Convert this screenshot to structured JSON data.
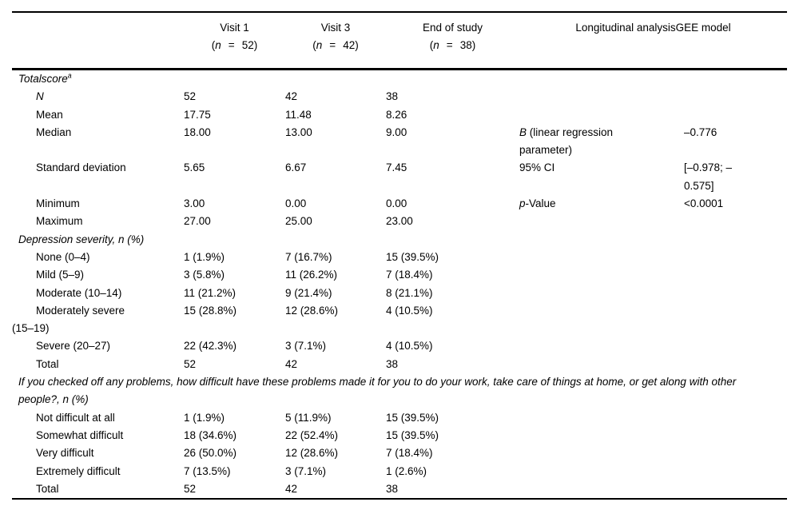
{
  "page": {
    "background": "#ffffff",
    "text_color": "#000000",
    "rule_color": "#000000"
  },
  "header": {
    "columns": [
      {
        "label": "Visit 1",
        "n_open": "(",
        "n_symbol": "n",
        "n_eq": "=",
        "n_count": "52)"
      },
      {
        "label": "Visit 3",
        "n_open": "(",
        "n_symbol": "n",
        "n_eq": "=",
        "n_count": "42)"
      },
      {
        "label": "End of study",
        "n_open": "(",
        "n_symbol": "n",
        "n_eq": "=",
        "n_count": "38)"
      }
    ],
    "gee_label": "Longitudinal analysisGEE model"
  },
  "rows": [
    {
      "type": "section",
      "label": "Totalscore",
      "sup": "a"
    },
    {
      "type": "data",
      "label": "N",
      "label_italic": true,
      "v1": "52",
      "v3": "42",
      "eos": "38",
      "gee_italic": "",
      "gee_rest": "",
      "gee_value": ""
    },
    {
      "type": "data",
      "label": "Mean",
      "label_italic": false,
      "v1": "17.75",
      "v3": "11.48",
      "eos": "8.26",
      "gee_italic": "",
      "gee_rest": "",
      "gee_value": ""
    },
    {
      "type": "data",
      "label": "Median",
      "label_italic": false,
      "v1": "18.00",
      "v3": "13.00",
      "eos": "9.00",
      "gee_italic": "B",
      "gee_rest": " (linear regression parameter)",
      "gee_value": "–0.776"
    },
    {
      "type": "data",
      "label": "Standard deviation",
      "label_italic": false,
      "v1": "5.65",
      "v3": "6.67",
      "eos": "7.45",
      "gee_italic": "",
      "gee_rest": "95% CI",
      "gee_value": "[–0.978; –0.575]"
    },
    {
      "type": "data",
      "label": "Minimum",
      "label_italic": false,
      "v1": "3.00",
      "v3": "0.00",
      "eos": "0.00",
      "gee_italic": "p",
      "gee_rest": "-Value",
      "gee_value": "<0.0001"
    },
    {
      "type": "data",
      "label": "Maximum",
      "label_italic": false,
      "v1": "27.00",
      "v3": "25.00",
      "eos": "23.00",
      "gee_italic": "",
      "gee_rest": "",
      "gee_value": ""
    },
    {
      "type": "section",
      "label": "Depression severity, n (%)",
      "sup": ""
    },
    {
      "type": "data",
      "label": "None (0–4)",
      "label_italic": false,
      "v1": "1 (1.9%)",
      "v3": "7 (16.7%)",
      "eos": "15 (39.5%)",
      "gee_italic": "",
      "gee_rest": "",
      "gee_value": ""
    },
    {
      "type": "data",
      "label": "Mild (5–9)",
      "label_italic": false,
      "v1": "3 (5.8%)",
      "v3": "11 (26.2%)",
      "eos": "7 (18.4%)",
      "gee_italic": "",
      "gee_rest": "",
      "gee_value": ""
    },
    {
      "type": "data",
      "label": "Moderate (10–14)",
      "label_italic": false,
      "v1": "11 (21.2%)",
      "v3": "9 (21.4%)",
      "eos": "8 (21.1%)",
      "gee_italic": "",
      "gee_rest": "",
      "gee_value": ""
    },
    {
      "type": "data",
      "label": "Moderately severe (15–19)",
      "label_italic": false,
      "v1": "15 (28.8%)",
      "v3": "12 (28.6%)",
      "eos": "4 (10.5%)",
      "gee_italic": "",
      "gee_rest": "",
      "gee_value": ""
    },
    {
      "type": "data",
      "label": "Severe (20–27)",
      "label_italic": false,
      "v1": "22 (42.3%)",
      "v3": "3 (7.1%)",
      "eos": "4 (10.5%)",
      "gee_italic": "",
      "gee_rest": "",
      "gee_value": ""
    },
    {
      "type": "data",
      "label": "Total",
      "label_italic": false,
      "v1": "52",
      "v3": "42",
      "eos": "38",
      "gee_italic": "",
      "gee_rest": "",
      "gee_value": ""
    },
    {
      "type": "section",
      "label": "If you checked off any problems, how difficult have these problems made it for you to do your work, take care of things at home, or get along with other people?, n (%)",
      "sup": ""
    },
    {
      "type": "data",
      "label": "Not difficult at all",
      "label_italic": false,
      "v1": "1 (1.9%)",
      "v3": "5 (11.9%)",
      "eos": "15 (39.5%)",
      "gee_italic": "",
      "gee_rest": "",
      "gee_value": ""
    },
    {
      "type": "data",
      "label": "Somewhat difficult",
      "label_italic": false,
      "v1": "18 (34.6%)",
      "v3": "22 (52.4%)",
      "eos": "15 (39.5%)",
      "gee_italic": "",
      "gee_rest": "",
      "gee_value": ""
    },
    {
      "type": "data",
      "label": "Very difficult",
      "label_italic": false,
      "v1": "26 (50.0%)",
      "v3": "12 (28.6%)",
      "eos": "7 (18.4%)",
      "gee_italic": "",
      "gee_rest": "",
      "gee_value": ""
    },
    {
      "type": "data",
      "label": "Extremely difficult",
      "label_italic": false,
      "v1": "7 (13.5%)",
      "v3": "3 (7.1%)",
      "eos": "1 (2.6%)",
      "gee_italic": "",
      "gee_rest": "",
      "gee_value": ""
    },
    {
      "type": "data",
      "label": "Total",
      "label_italic": false,
      "v1": "52",
      "v3": "42",
      "eos": "38",
      "gee_italic": "",
      "gee_rest": "",
      "gee_value": ""
    }
  ]
}
